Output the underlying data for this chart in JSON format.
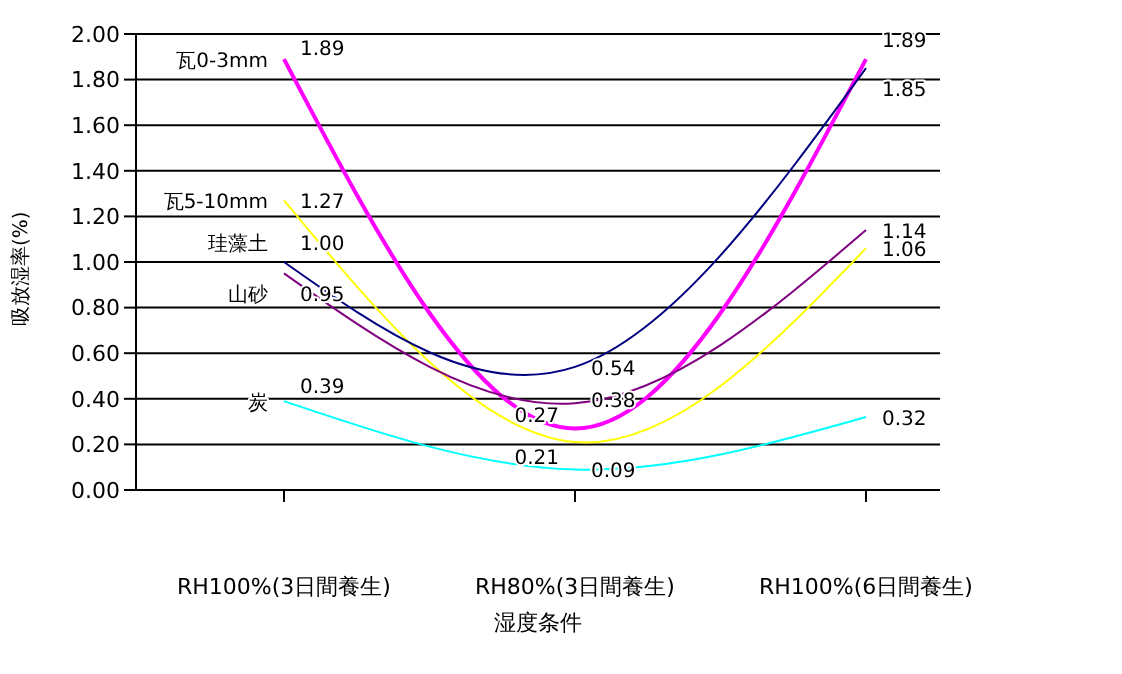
{
  "chart_data": {
    "type": "line",
    "xlabel": "湿度条件",
    "ylabel": "吸放湿率(%)",
    "categories": [
      "RH100%(3日間養生)",
      "RH80%(3日間養生)",
      "RH100%(6日間養生)"
    ],
    "series": [
      {
        "name": "瓦0-3mm",
        "color": "#ff00ff",
        "values": [
          1.89,
          0.27,
          1.89
        ],
        "value_labels": [
          "1.89",
          "0.27",
          "1.89"
        ]
      },
      {
        "name": "瓦5-10mm",
        "color": "#ffff00",
        "values": [
          1.27,
          0.21,
          1.06
        ],
        "value_labels": [
          "1.27",
          "0.21",
          "1.06"
        ]
      },
      {
        "name": "珪藻土",
        "color": "#000080",
        "values": [
          1.0,
          0.54,
          1.85
        ],
        "value_labels": [
          "1.00",
          "0.54",
          "1.85"
        ]
      },
      {
        "name": "山砂",
        "color": "#800080",
        "values": [
          0.95,
          0.38,
          1.14
        ],
        "value_labels": [
          "0.95",
          "0.38",
          "1.14"
        ]
      },
      {
        "name": "炭",
        "color": "#00ffff",
        "values": [
          0.39,
          0.09,
          0.32
        ],
        "value_labels": [
          "0.39",
          "0.09",
          "0.32"
        ]
      }
    ],
    "ylim": [
      0,
      2
    ],
    "yticks": [
      {
        "value": 0,
        "label": "0.00"
      },
      {
        "value": 0.2,
        "label": "0.20"
      },
      {
        "value": 0.4,
        "label": "0.40"
      },
      {
        "value": 0.6,
        "label": "0.60"
      },
      {
        "value": 0.8,
        "label": "0.80"
      },
      {
        "value": 1,
        "label": "1.00"
      },
      {
        "value": 1.2,
        "label": "1.20"
      },
      {
        "value": 1.4,
        "label": "1.40"
      },
      {
        "value": 1.6,
        "label": "1.60"
      },
      {
        "value": 1.8,
        "label": "1.80"
      },
      {
        "value": 2,
        "label": "2.00"
      }
    ],
    "grid": "y",
    "legend": false,
    "marker": "none",
    "line_style": "solid"
  }
}
